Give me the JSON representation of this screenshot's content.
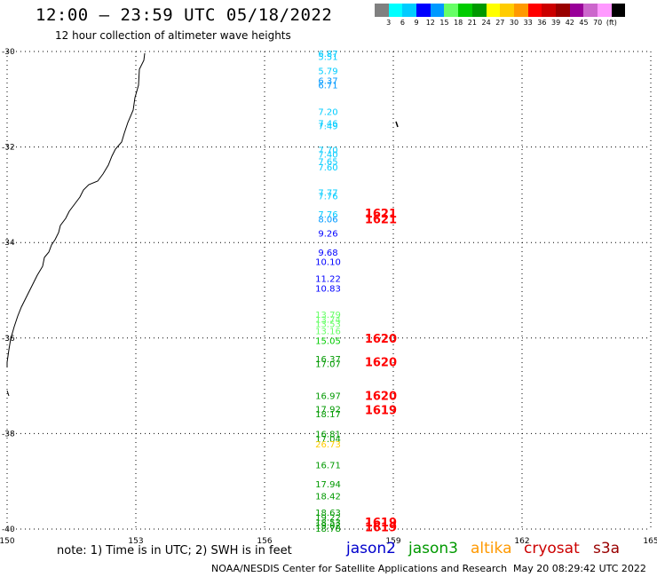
{
  "header": {
    "title": "12:00 — 23:59 UTC 05/18/2022",
    "subtitle": "12 hour collection of altimeter wave heights"
  },
  "colorbar": {
    "colors": [
      "#808080",
      "#00ffff",
      "#00ccff",
      "#0000ff",
      "#0099ff",
      "#66ff66",
      "#00cc00",
      "#009900",
      "#ffff00",
      "#ffcc00",
      "#ff9900",
      "#ff0000",
      "#cc0000",
      "#990000",
      "#990099",
      "#cc66cc",
      "#ff99ff",
      "#000000"
    ],
    "labels": [
      "3",
      "6",
      "9",
      "12",
      "15",
      "18",
      "21",
      "24",
      "27",
      "30",
      "33",
      "36",
      "39",
      "42",
      "45",
      "70",
      "(ft)"
    ]
  },
  "axes": {
    "lon_labels": [
      "150",
      "153",
      "156",
      "159",
      "162",
      "165"
    ],
    "lat_labels": [
      "-30",
      "-32",
      "-34",
      "-36",
      "-38",
      "-40"
    ]
  },
  "wave_heights": [
    {
      "v": "6.87",
      "lat": -30.04,
      "c": "#00ccff"
    },
    {
      "v": "5.51",
      "lat": -30.1,
      "c": "#00ccff"
    },
    {
      "v": "5.79",
      "lat": -30.4,
      "c": "#00ccff"
    },
    {
      "v": "6.37",
      "lat": -30.6,
      "c": "#0099ff"
    },
    {
      "v": "6.71",
      "lat": -30.7,
      "c": "#0099ff"
    },
    {
      "v": "7.20",
      "lat": -31.25,
      "c": "#00ccff"
    },
    {
      "v": "7.46",
      "lat": -31.5,
      "c": "#00ccff"
    },
    {
      "v": "7.49",
      "lat": -31.55,
      "c": "#00ccff"
    },
    {
      "v": "7.70",
      "lat": -32.05,
      "c": "#00ccff"
    },
    {
      "v": "7.40",
      "lat": -32.15,
      "c": "#00ccff"
    },
    {
      "v": "7.65",
      "lat": -32.3,
      "c": "#00ccff"
    },
    {
      "v": "7.60",
      "lat": -32.42,
      "c": "#00ccff"
    },
    {
      "v": "7.77",
      "lat": -32.95,
      "c": "#00ccff"
    },
    {
      "v": "7.76",
      "lat": -33.02,
      "c": "#00ccff"
    },
    {
      "v": "7.76",
      "lat": -33.4,
      "c": "#00ccff"
    },
    {
      "v": "8.06",
      "lat": -33.5,
      "c": "#0099ff"
    },
    {
      "v": "9.26",
      "lat": -33.8,
      "c": "#0000ff"
    },
    {
      "v": "9.68",
      "lat": -34.2,
      "c": "#0000ff"
    },
    {
      "v": "10.10",
      "lat": -34.4,
      "c": "#0000ff"
    },
    {
      "v": "11.22",
      "lat": -34.75,
      "c": "#0000ff"
    },
    {
      "v": "10.83",
      "lat": -34.95,
      "c": "#0000ff"
    },
    {
      "v": "13.79",
      "lat": -35.5,
      "c": "#66ff66"
    },
    {
      "v": "13.74",
      "lat": -35.6,
      "c": "#66ff66"
    },
    {
      "v": "13.53",
      "lat": -35.7,
      "c": "#66ff66"
    },
    {
      "v": "13.16",
      "lat": -35.85,
      "c": "#66ff66"
    },
    {
      "v": "15.05",
      "lat": -36.05,
      "c": "#00cc00"
    },
    {
      "v": "16.37",
      "lat": -36.43,
      "c": "#009900"
    },
    {
      "v": "17.07",
      "lat": -36.53,
      "c": "#009900"
    },
    {
      "v": "16.97",
      "lat": -37.2,
      "c": "#009900"
    },
    {
      "v": "17.92",
      "lat": -37.48,
      "c": "#009900"
    },
    {
      "v": "18.17",
      "lat": -37.58,
      "c": "#009900"
    },
    {
      "v": "16.81",
      "lat": -38.0,
      "c": "#009900"
    },
    {
      "v": "17.04",
      "lat": -38.1,
      "c": "#009900"
    },
    {
      "v": "26.73",
      "lat": -38.22,
      "c": "#ffcc00"
    },
    {
      "v": "16.71",
      "lat": -38.65,
      "c": "#009900"
    },
    {
      "v": "17.94",
      "lat": -39.05,
      "c": "#009900"
    },
    {
      "v": "18.42",
      "lat": -39.3,
      "c": "#009900"
    },
    {
      "v": "18.63",
      "lat": -39.65,
      "c": "#009900"
    },
    {
      "v": "19.22",
      "lat": -39.75,
      "c": "#009900"
    },
    {
      "v": "18.53",
      "lat": -39.85,
      "c": "#009900"
    },
    {
      "v": "19.02",
      "lat": -39.92,
      "c": "#009900"
    },
    {
      "v": "18.78",
      "lat": -39.98,
      "c": "#009900"
    }
  ],
  "time_marks": [
    {
      "t": "1621",
      "lat": -33.38
    },
    {
      "t": "1621",
      "lat": -33.5
    },
    {
      "t": "1620",
      "lat": -36.0
    },
    {
      "t": "1620",
      "lat": -36.5
    },
    {
      "t": "1620",
      "lat": -37.2
    },
    {
      "t": "1619",
      "lat": -37.5
    },
    {
      "t": "1619",
      "lat": -39.85
    },
    {
      "t": "1619",
      "lat": -39.95
    }
  ],
  "footer": {
    "note": "note: 1) Time is in UTC; 2) SWH is in feet",
    "legend": [
      {
        "label": "jason2",
        "color": "#0000cc"
      },
      {
        "label": "jason3",
        "color": "#009900"
      },
      {
        "label": "altika",
        "color": "#ff9900"
      },
      {
        "label": "cryosat",
        "color": "#cc0000"
      },
      {
        "label": "s3a",
        "color": "#990000"
      }
    ],
    "credit": "NOAA/NESDIS Center for Satellite Applications and Research",
    "timestamp": "May 20 08:29:42 UTC 2022"
  }
}
